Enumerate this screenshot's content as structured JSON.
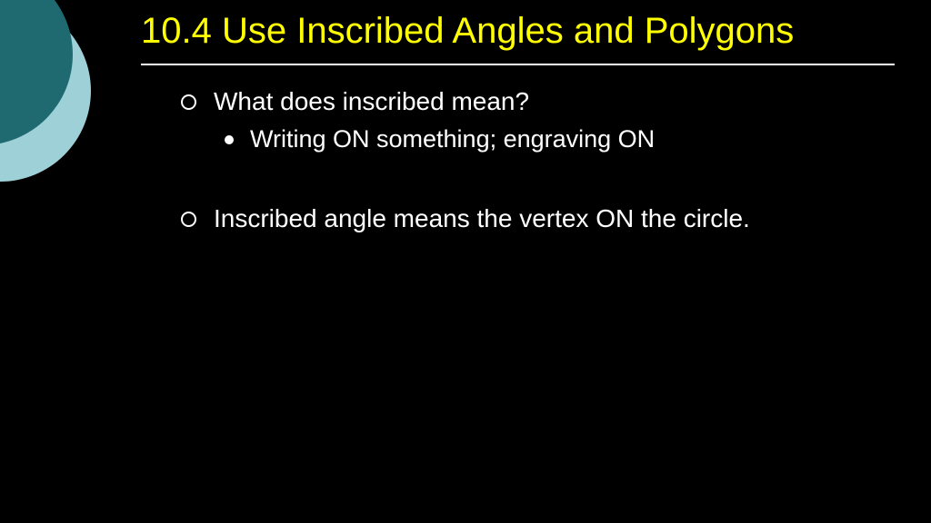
{
  "slide": {
    "title": "10.4 Use Inscribed Angles and Polygons",
    "title_color": "#ffff00",
    "title_fontsize": 40,
    "background_color": "#000000",
    "text_color": "#ffffff",
    "divider_color": "#ffffff",
    "decoration": {
      "outer_circle_color": "#9ed1d7",
      "inner_circle_color": "#1f6a71"
    },
    "bullets": [
      {
        "level": 1,
        "text": "What does inscribed mean?",
        "bullet_style": "hollow-circle"
      },
      {
        "level": 2,
        "text": "Writing ON something; engraving ON",
        "bullet_style": "filled-circle"
      },
      {
        "level": 1,
        "text": "Inscribed angle means the vertex ON the circle.",
        "bullet_style": "hollow-circle"
      }
    ],
    "body_fontsize_level1": 28,
    "body_fontsize_level2": 27
  }
}
